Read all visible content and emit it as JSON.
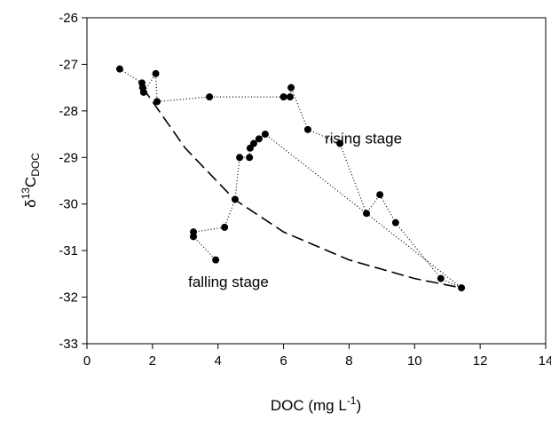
{
  "chart_data": {
    "type": "scatter",
    "xlabel": {
      "main": "DOC (mg L",
      "sup": "-1",
      "end": ")"
    },
    "ylabel": {
      "main": "δ",
      "sup": "13",
      "letter": "C",
      "sub": "DOC"
    },
    "xlim": [
      0,
      14
    ],
    "xticks": [
      0,
      2,
      4,
      6,
      8,
      10,
      12,
      14
    ],
    "ylim": [
      -33,
      -26
    ],
    "yticks": [
      -33,
      -32,
      -31,
      -30,
      -29,
      -28,
      -27,
      -26
    ],
    "color": "#000000",
    "points": {
      "x": [
        1.0,
        1.68,
        1.7,
        1.73,
        2.1,
        2.14,
        3.74,
        6.0,
        6.2,
        6.23,
        6.74,
        7.72,
        8.53,
        8.94,
        9.42,
        10.8,
        11.43,
        5.44,
        5.25,
        5.09,
        4.98,
        4.96,
        4.66,
        4.52,
        4.2,
        3.25,
        3.25,
        3.93
      ],
      "values": [
        -27.1,
        -27.4,
        -27.5,
        -27.6,
        -27.2,
        -27.8,
        -27.7,
        -27.7,
        -27.7,
        -27.5,
        -28.4,
        -28.7,
        -30.2,
        -29.8,
        -30.4,
        -31.6,
        -31.8,
        -28.5,
        -28.6,
        -28.7,
        -28.8,
        -29.0,
        -29.0,
        -29.9,
        -30.5,
        -30.6,
        -30.7,
        -31.2
      ]
    },
    "curve": {
      "x": [
        1.7,
        3.0,
        4.5,
        6.0,
        8.0,
        10.0,
        11.43
      ],
      "values": [
        -27.5,
        -28.8,
        -29.9,
        -30.6,
        -31.2,
        -31.6,
        -31.8
      ]
    },
    "annotations": [
      {
        "text": "rising stage",
        "x": 7.26,
        "y": -28.6
      },
      {
        "text": "falling stage",
        "x": 3.09,
        "y": -31.68
      }
    ]
  }
}
